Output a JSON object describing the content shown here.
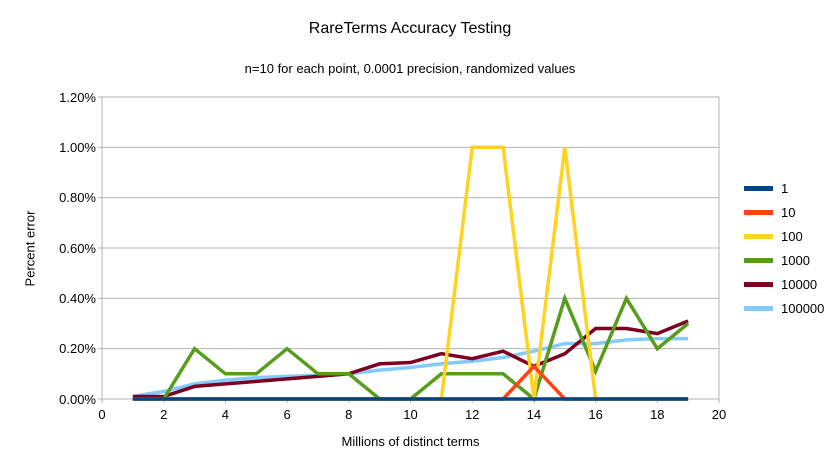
{
  "header": {
    "title": "RareTerms Accuracy Testing",
    "subtitle": "n=10 for each point, 0.0001 precision, randomized values"
  },
  "chart_data": {
    "type": "line",
    "title": "RareTerms Accuracy Testing",
    "subtitle": "n=10 for each point, 0.0001 precision, randomized values",
    "xlabel": "Millions of distinct terms",
    "ylabel": "Percent error",
    "xlim": [
      0,
      20
    ],
    "ylim": [
      0,
      1.2
    ],
    "y_unit": "percent",
    "grid": "horizontal",
    "legend_position": "right",
    "x_tick_labels": [
      "0",
      "2",
      "4",
      "6",
      "8",
      "10",
      "12",
      "14",
      "16",
      "18",
      "20"
    ],
    "x_tick_values": [
      0,
      2,
      4,
      6,
      8,
      10,
      12,
      14,
      16,
      18,
      20
    ],
    "y_tick_labels": [
      "0.00%",
      "0.20%",
      "0.40%",
      "0.60%",
      "0.80%",
      "1.00%",
      "1.20%"
    ],
    "y_tick_values": [
      0,
      0.2,
      0.4,
      0.6,
      0.8,
      1.0,
      1.2
    ],
    "x": [
      1,
      2,
      3,
      4,
      5,
      6,
      7,
      8,
      9,
      10,
      11,
      12,
      13,
      14,
      15,
      16,
      17,
      18,
      19
    ],
    "series": [
      {
        "name": "1",
        "color": "#004586",
        "values": [
          0,
          0,
          0,
          0,
          0,
          0,
          0,
          0,
          0,
          0,
          0,
          0,
          0,
          0,
          0,
          0,
          0,
          0,
          0
        ]
      },
      {
        "name": "10",
        "color": "#ff420e",
        "values": [
          0,
          0,
          0,
          0,
          0,
          0,
          0,
          0,
          0,
          0,
          0,
          0,
          0,
          0.13,
          0,
          0,
          0,
          0,
          0
        ]
      },
      {
        "name": "100",
        "color": "#ffd320",
        "values": [
          0,
          0,
          0,
          0,
          0,
          0,
          0,
          0,
          0,
          0,
          0,
          1.0,
          1.0,
          0,
          1.0,
          0,
          0,
          0,
          0
        ]
      },
      {
        "name": "1000",
        "color": "#579d1c",
        "values": [
          0,
          0,
          0.2,
          0.1,
          0.1,
          0.2,
          0.1,
          0.1,
          0,
          0,
          0.1,
          0.1,
          0.1,
          0,
          0.4,
          0.11,
          0.4,
          0.2,
          0.3
        ]
      },
      {
        "name": "10000",
        "color": "#7e0021",
        "values": [
          0.01,
          0.01,
          0.05,
          0.06,
          0.07,
          0.08,
          0.09,
          0.1,
          0.14,
          0.145,
          0.18,
          0.16,
          0.19,
          0.13,
          0.18,
          0.28,
          0.28,
          0.26,
          0.31
        ]
      },
      {
        "name": "100000",
        "color": "#83caff",
        "values": [
          0.01,
          0.03,
          0.06,
          0.075,
          0.085,
          0.09,
          0.095,
          0.1,
          0.115,
          0.125,
          0.14,
          0.15,
          0.165,
          0.19,
          0.22,
          0.22,
          0.235,
          0.24,
          0.24
        ]
      }
    ],
    "axis_color": "#b3b3b3",
    "grid_color": "#b3b3b3"
  }
}
